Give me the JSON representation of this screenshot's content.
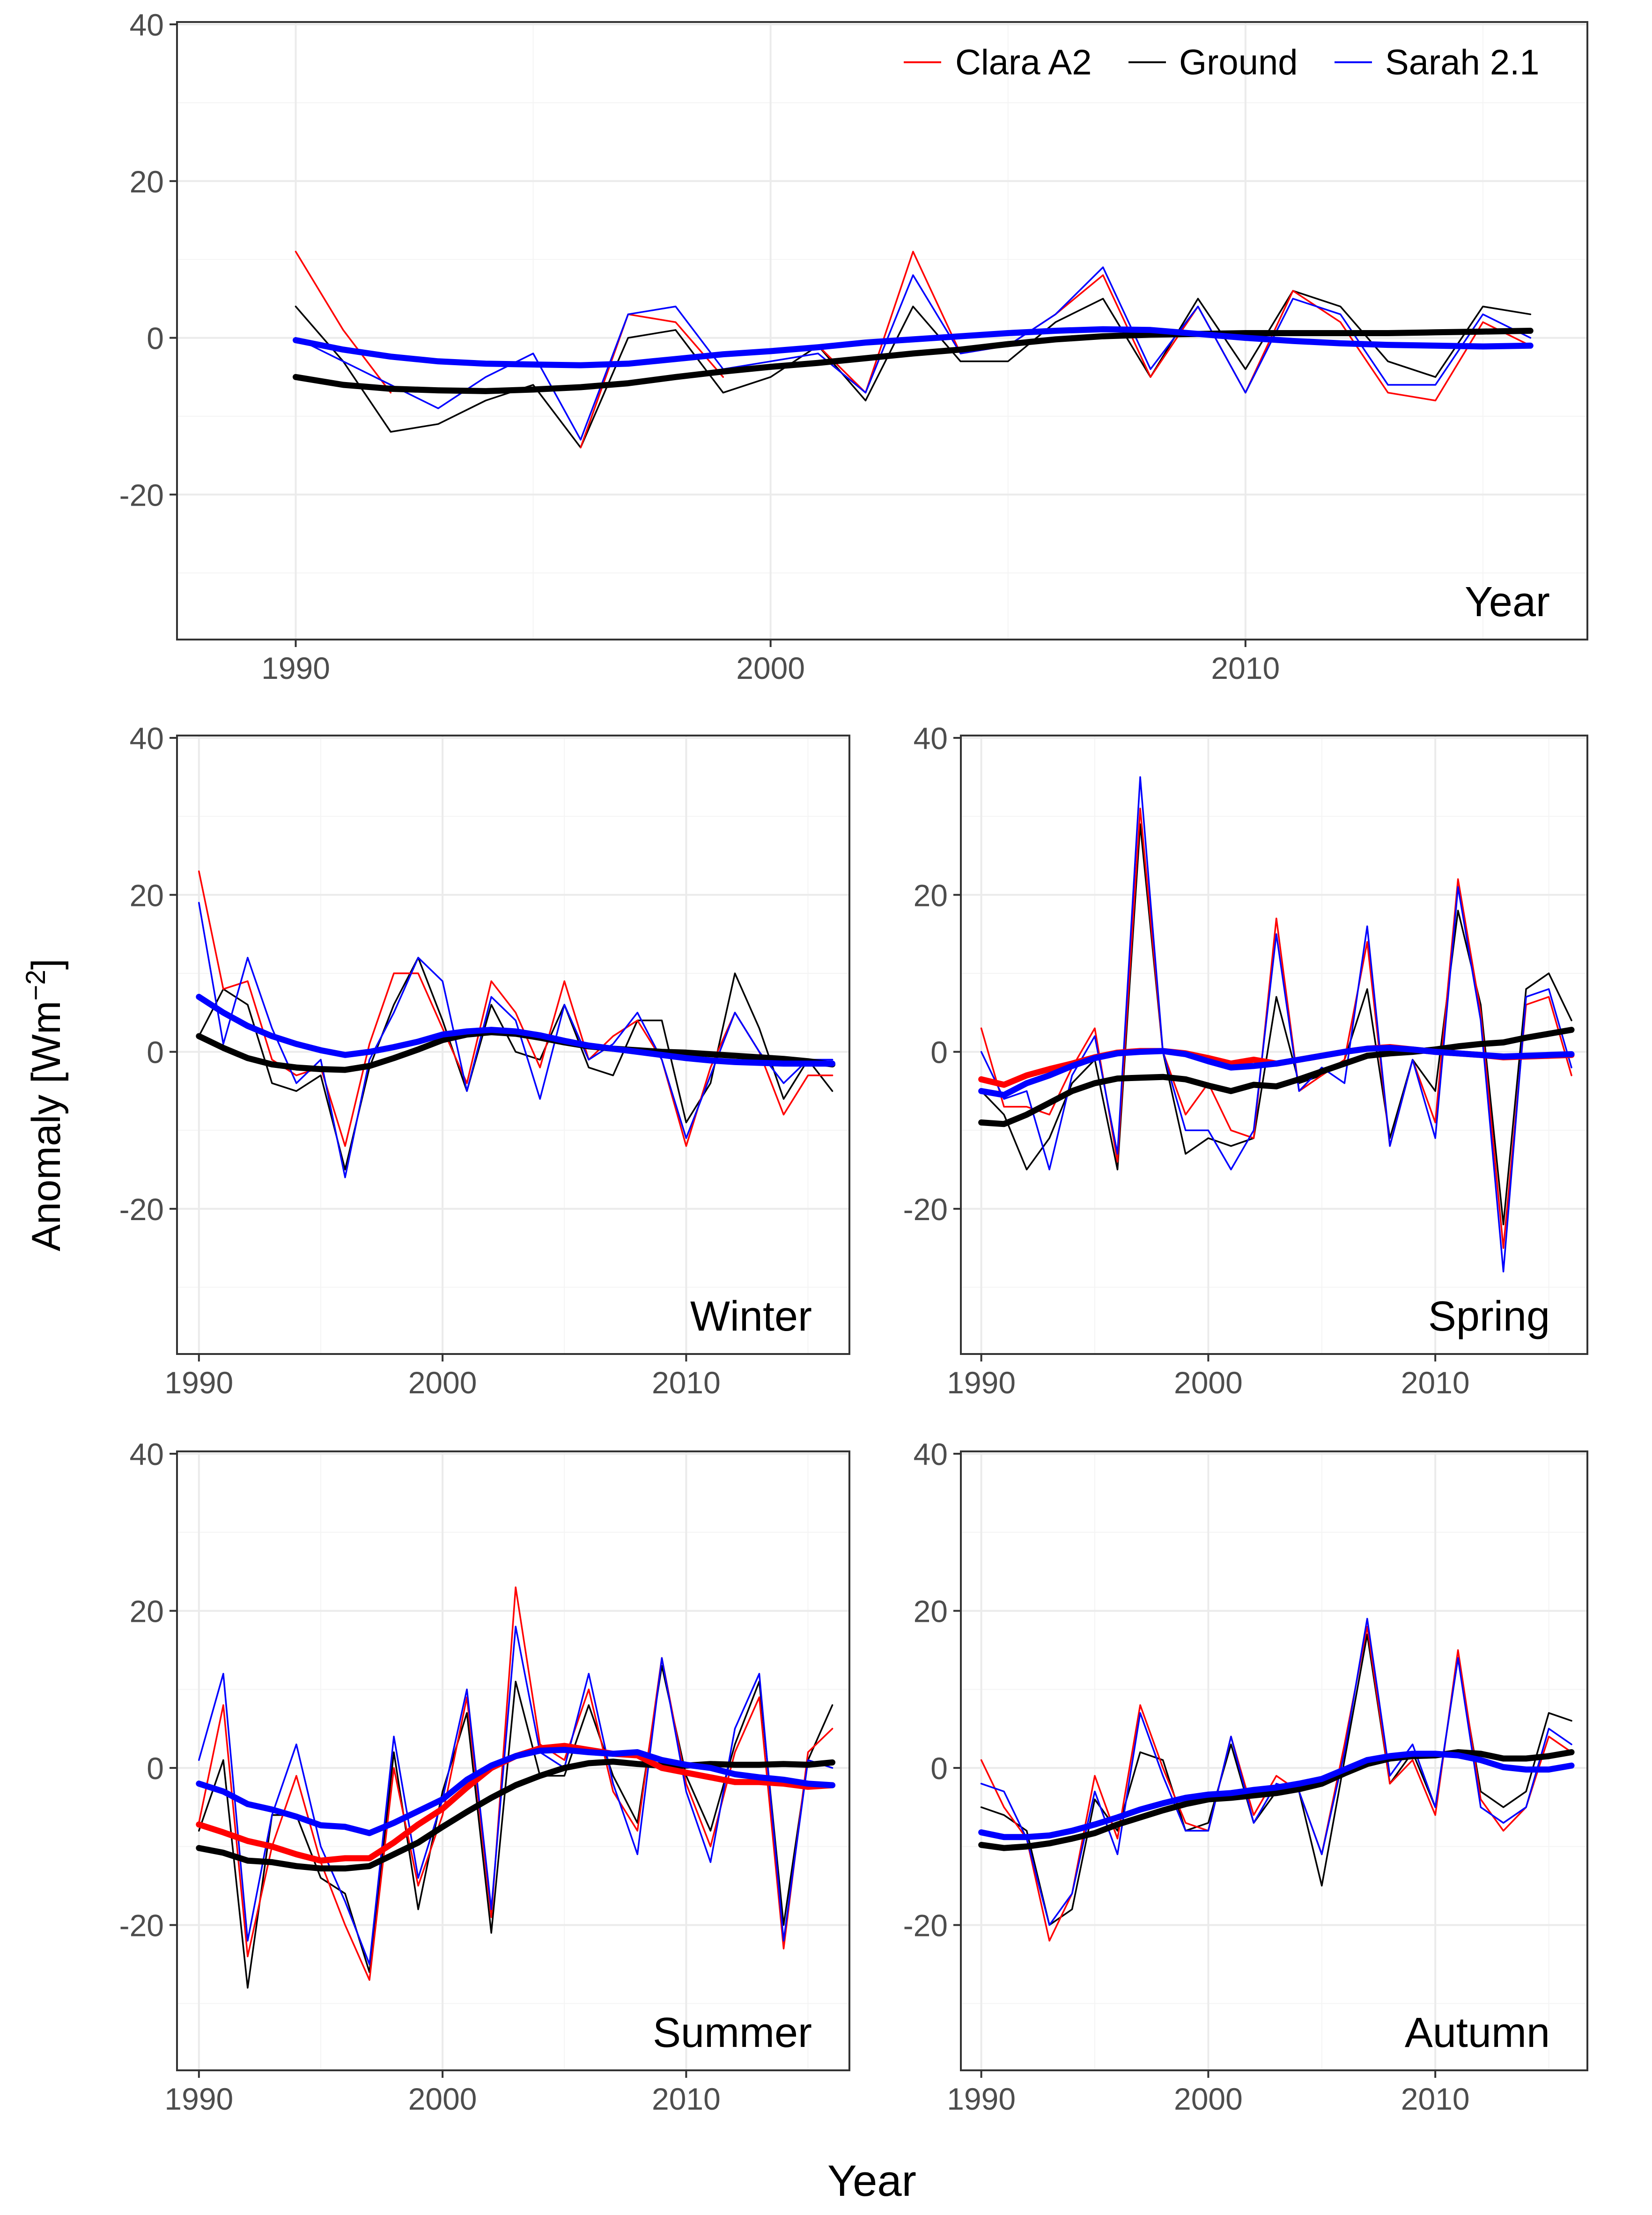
{
  "figure": {
    "ylabel_main": "Anomaly [Wm",
    "ylabel_sup": "−2",
    "ylabel_close": "]",
    "xlabel": "Year",
    "legend": [
      {
        "label": "Clara A2",
        "color": "#ff0000"
      },
      {
        "label": "Ground",
        "color": "#000000"
      },
      {
        "label": "Sarah 2.1",
        "color": "#0000ff"
      }
    ]
  },
  "colors": {
    "clara": "#ff0000",
    "ground": "#000000",
    "sarah": "#0000ff",
    "grid_major": "#ebebeb",
    "grid_minor": "#f4f4f4",
    "axis_text": "#4d4d4d",
    "frame": "#333333"
  },
  "chart_data": [
    {
      "type": "line",
      "title": "Year",
      "x": [
        1990,
        1991,
        1992,
        1993,
        1994,
        1995,
        1996,
        1997,
        1998,
        1999,
        2000,
        2001,
        2002,
        2003,
        2004,
        2005,
        2006,
        2007,
        2008,
        2009,
        2010,
        2011,
        2012,
        2013,
        2014,
        2015,
        2016
      ],
      "xlim": [
        1987.5,
        2017.2
      ],
      "ylim": [
        -38.5,
        40.3
      ],
      "xticks": [
        1990,
        2000,
        2010
      ],
      "yticks": [
        -20,
        0,
        20,
        40
      ],
      "series": [
        {
          "name": "Ground",
          "values": [
            4,
            -3,
            -12,
            -11,
            -8,
            -6,
            -14,
            0,
            1,
            -7,
            -5,
            -1,
            -8,
            4,
            -3,
            -3,
            2,
            5,
            -5,
            5,
            -4,
            6,
            4,
            -3,
            -5,
            4,
            3
          ]
        },
        {
          "name": "Clara A2",
          "values": [
            11,
            1,
            -7,
            null,
            null,
            null,
            -14,
            3,
            2,
            -5,
            null,
            -1,
            -7,
            11,
            -2,
            -1,
            3,
            8,
            -5,
            4,
            -7,
            6,
            2,
            -7,
            -8,
            2,
            -1
          ]
        },
        {
          "name": "Sarah 2.1",
          "values": [
            0,
            -3,
            -6,
            -9,
            -5,
            -2,
            -13,
            3,
            4,
            -4,
            -3,
            -2,
            -7,
            8,
            -2,
            -1,
            3,
            9,
            -4,
            4,
            -7,
            5,
            3,
            -6,
            -6,
            3,
            0
          ]
        }
      ],
      "smooth": [
        {
          "name": "Ground",
          "values": [
            -5,
            -6,
            -6.5,
            -6.7,
            -6.8,
            -6.6,
            -6.3,
            -5.8,
            -5,
            -4.3,
            -3.7,
            -3.2,
            -2.6,
            -2,
            -1.5,
            -0.8,
            -0.2,
            0.2,
            0.4,
            0.5,
            0.6,
            0.6,
            0.6,
            0.6,
            0.7,
            0.8,
            0.9
          ]
        },
        {
          "name": "Sarah 2.1",
          "values": [
            -0.3,
            -1.5,
            -2.4,
            -3,
            -3.3,
            -3.4,
            -3.5,
            -3.3,
            -2.7,
            -2.1,
            -1.7,
            -1.2,
            -0.6,
            -0.2,
            0.2,
            0.6,
            0.9,
            1.1,
            1,
            0.5,
            0,
            -0.4,
            -0.7,
            -0.9,
            -1,
            -1.1,
            -1
          ]
        }
      ]
    },
    {
      "type": "line",
      "title": "Winter",
      "x": [
        1990,
        1991,
        1992,
        1993,
        1994,
        1995,
        1996,
        1997,
        1998,
        1999,
        2000,
        2001,
        2002,
        2003,
        2004,
        2005,
        2006,
        2007,
        2008,
        2009,
        2010,
        2011,
        2012,
        2013,
        2014,
        2015,
        2016
      ],
      "xlim": [
        1989.1,
        2016.7
      ],
      "ylim": [
        -38.5,
        40.3
      ],
      "xticks": [
        1990,
        2000,
        2010
      ],
      "yticks": [
        -20,
        0,
        20,
        40
      ],
      "series": [
        {
          "name": "Ground",
          "values": [
            2,
            8,
            6,
            -4,
            -5,
            -3,
            -15,
            -2,
            6,
            12,
            4,
            -5,
            6,
            0,
            -1,
            6,
            -2,
            -3,
            4,
            4,
            -9,
            -4,
            10,
            3,
            -6,
            -1,
            -5
          ]
        },
        {
          "name": "Clara A2",
          "values": [
            23,
            8,
            9,
            -1,
            -3,
            -2,
            -12,
            1,
            10,
            10,
            3,
            -4,
            9,
            5,
            -2,
            9,
            -1,
            2,
            4,
            -1,
            -12,
            -2,
            5,
            0,
            -8,
            -3,
            -3
          ]
        },
        {
          "name": "Sarah 2.1",
          "values": [
            19,
            1,
            12,
            3,
            -4,
            -1,
            -16,
            -1,
            5,
            12,
            9,
            -5,
            7,
            4,
            -6,
            6,
            -1,
            1,
            5,
            -1,
            -11,
            -3,
            5,
            0,
            -4,
            -1,
            -1
          ]
        }
      ],
      "smooth": [
        {
          "name": "Ground",
          "values": [
            2,
            0.5,
            -0.8,
            -1.6,
            -2,
            -2.2,
            -2.3,
            -1.8,
            -0.8,
            0.3,
            1.5,
            2.2,
            2.5,
            2.3,
            1.8,
            1.2,
            0.7,
            0.4,
            0.2,
            0,
            -0.1,
            -0.3,
            -0.5,
            -0.7,
            -0.9,
            -1.2,
            -1.6
          ]
        },
        {
          "name": "Sarah 2.1",
          "values": [
            7,
            5,
            3.3,
            2,
            1,
            0.2,
            -0.4,
            0,
            0.6,
            1.3,
            2.2,
            2.6,
            2.8,
            2.6,
            2.1,
            1.4,
            0.8,
            0.4,
            0,
            -0.4,
            -0.8,
            -1.1,
            -1.3,
            -1.4,
            -1.5,
            -1.5,
            -1.5
          ]
        }
      ]
    },
    {
      "type": "line",
      "title": "Spring",
      "x": [
        1990,
        1991,
        1992,
        1993,
        1994,
        1995,
        1996,
        1997,
        1998,
        1999,
        2000,
        2001,
        2002,
        2003,
        2004,
        2005,
        2006,
        2007,
        2008,
        2009,
        2010,
        2011,
        2012,
        2013,
        2014,
        2015,
        2016
      ],
      "xlim": [
        1989.1,
        2016.7
      ],
      "ylim": [
        -38.5,
        40.3
      ],
      "xticks": [
        1990,
        2000,
        2010
      ],
      "yticks": [
        -20,
        0,
        20,
        40
      ],
      "series": [
        {
          "name": "Ground",
          "values": [
            -5,
            -8,
            -15,
            -11,
            -4,
            -1,
            -15,
            29,
            0,
            -13,
            -11,
            -12,
            -11,
            7,
            -4,
            -3,
            -1,
            8,
            -11,
            -1,
            -5,
            18,
            6,
            -22,
            8,
            10,
            4
          ]
        },
        {
          "name": "Clara A2",
          "values": [
            3,
            -7,
            -7,
            -8,
            -2,
            3,
            -14,
            31,
            0,
            -8,
            -4,
            -10,
            -11,
            17,
            -5,
            -3,
            -1,
            14,
            -12,
            -1,
            -9,
            22,
            5,
            -25,
            6,
            7,
            -3
          ]
        },
        {
          "name": "Sarah 2.1",
          "values": [
            0,
            -6,
            -5,
            -15,
            -3,
            2,
            -13,
            35,
            0,
            -10,
            -10,
            -15,
            -10,
            15,
            -5,
            -2,
            -4,
            16,
            -12,
            -1,
            -11,
            21,
            4,
            -28,
            7,
            8,
            -2
          ]
        }
      ],
      "smooth": [
        {
          "name": "Ground",
          "values": [
            -9,
            -9.2,
            -8,
            -6.5,
            -5,
            -4,
            -3.4,
            -3.3,
            -3.2,
            -3.5,
            -4.3,
            -5,
            -4.2,
            -4.4,
            -3.5,
            -2.5,
            -1.5,
            -0.5,
            -0.2,
            0,
            0.3,
            0.7,
            1,
            1.2,
            1.8,
            2.3,
            2.8
          ]
        },
        {
          "name": "Clara A2",
          "values": [
            -3.5,
            -4.2,
            -3,
            -2.2,
            -1.5,
            -0.7,
            -0.1,
            0.1,
            0.1,
            -0.2,
            -0.8,
            -1.5,
            -1,
            -1.5,
            -1,
            -0.5,
            0,
            0.4,
            0.6,
            0.3,
            0,
            -0.2,
            -0.4,
            -0.7,
            -0.6,
            -0.5,
            -0.4
          ]
        },
        {
          "name": "Sarah 2.1",
          "values": [
            -5,
            -5.5,
            -4,
            -3,
            -1.8,
            -0.8,
            -0.2,
            0,
            0.1,
            -0.3,
            -1.2,
            -2,
            -1.8,
            -1.5,
            -1,
            -0.5,
            0,
            0.4,
            0.5,
            0.3,
            0,
            -0.2,
            -0.4,
            -0.6,
            -0.5,
            -0.4,
            -0.3
          ]
        }
      ]
    },
    {
      "type": "line",
      "title": "Summer",
      "x": [
        1990,
        1991,
        1992,
        1993,
        1994,
        1995,
        1996,
        1997,
        1998,
        1999,
        2000,
        2001,
        2002,
        2003,
        2004,
        2005,
        2006,
        2007,
        2008,
        2009,
        2010,
        2011,
        2012,
        2013,
        2014,
        2015,
        2016
      ],
      "xlim": [
        1989.1,
        2016.7
      ],
      "ylim": [
        -38.5,
        40.3
      ],
      "xticks": [
        1990,
        2000,
        2010
      ],
      "yticks": [
        -20,
        0,
        20,
        40
      ],
      "series": [
        {
          "name": "Ground",
          "values": [
            -8,
            1,
            -28,
            -6,
            -6,
            -14,
            -16,
            -26,
            2,
            -18,
            -3,
            7,
            -21,
            11,
            -1,
            -1,
            8,
            -1,
            -7,
            13,
            -1,
            -8,
            3,
            11,
            -20,
            1,
            8
          ]
        },
        {
          "name": "Clara A2",
          "values": [
            -7,
            8,
            -24,
            -10,
            -1,
            -12,
            -20,
            -27,
            0,
            -15,
            -6,
            9,
            -19,
            23,
            3,
            1,
            10,
            -3,
            -8,
            14,
            -2,
            -10,
            2,
            9,
            -23,
            2,
            5
          ]
        },
        {
          "name": "Sarah 2.1",
          "values": [
            1,
            12,
            -22,
            -6,
            3,
            -10,
            -17,
            -25,
            4,
            -14,
            -4,
            10,
            -18,
            18,
            2,
            0,
            12,
            -2,
            -11,
            14,
            -3,
            -12,
            5,
            12,
            -22,
            1,
            0
          ]
        }
      ],
      "smooth": [
        {
          "name": "Ground",
          "values": [
            -10.2,
            -10.8,
            -11.8,
            -12,
            -12.5,
            -12.8,
            -12.8,
            -12.5,
            -11,
            -9.5,
            -7.5,
            -5.6,
            -3.8,
            -2.2,
            -1,
            0,
            0.6,
            0.8,
            0.5,
            0.3,
            0.3,
            0.5,
            0.4,
            0.4,
            0.5,
            0.4,
            0.7
          ]
        },
        {
          "name": "Clara A2",
          "values": [
            -7.2,
            -8.2,
            -9.3,
            -10,
            -11,
            -11.8,
            -11.5,
            -11.5,
            -9.5,
            -7.2,
            -5.2,
            -2.5,
            0,
            1.5,
            2.5,
            2.8,
            2.3,
            1.8,
            1.6,
            0,
            -0.6,
            -1.2,
            -1.8,
            -1.8,
            -2,
            -2.4,
            -2.2
          ]
        },
        {
          "name": "Sarah 2.1",
          "values": [
            -2,
            -3,
            -4.6,
            -5.3,
            -6.2,
            -7.3,
            -7.5,
            -8.3,
            -7,
            -5.5,
            -4,
            -1.5,
            0.3,
            1.5,
            2.2,
            2.3,
            2,
            1.8,
            2,
            1,
            0.4,
            0,
            -0.8,
            -1.2,
            -1.5,
            -2,
            -2.2
          ]
        }
      ]
    },
    {
      "type": "line",
      "title": "Autumn",
      "x": [
        1990,
        1991,
        1992,
        1993,
        1994,
        1995,
        1996,
        1997,
        1998,
        1999,
        2000,
        2001,
        2002,
        2003,
        2004,
        2005,
        2006,
        2007,
        2008,
        2009,
        2010,
        2011,
        2012,
        2013,
        2014,
        2015,
        2016
      ],
      "xlim": [
        1989.1,
        2016.7
      ],
      "ylim": [
        -38.5,
        40.3
      ],
      "xticks": [
        1990,
        2000,
        2010
      ],
      "yticks": [
        -20,
        0,
        20,
        40
      ],
      "series": [
        {
          "name": "Ground",
          "values": [
            -5,
            -6,
            -8,
            -20,
            -18,
            -4,
            -8,
            2,
            1,
            -8,
            -7,
            3,
            -7,
            -3,
            -3,
            -15,
            1,
            17,
            -2,
            2,
            -5,
            14,
            -3,
            -5,
            -3,
            7,
            6
          ]
        },
        {
          "name": "Clara A2",
          "values": [
            1,
            -5,
            -9,
            -22,
            -16,
            -1,
            -9,
            8,
            0,
            -7,
            -8,
            4,
            -6,
            -1,
            -3,
            -11,
            3,
            18,
            -2,
            1,
            -6,
            15,
            -4,
            -8,
            -5,
            4,
            2
          ]
        },
        {
          "name": "Sarah 2.1",
          "values": [
            -2,
            -3,
            -9,
            -20,
            -16,
            -3,
            -11,
            7,
            -1,
            -8,
            -8,
            4,
            -7,
            -2,
            -3,
            -11,
            2,
            19,
            -1,
            3,
            -5,
            14,
            -5,
            -7,
            -5,
            5,
            3
          ]
        }
      ],
      "smooth": [
        {
          "name": "Ground",
          "values": [
            -9.8,
            -10.2,
            -10,
            -9.6,
            -9,
            -8.3,
            -7.2,
            -6.3,
            -5.4,
            -4.6,
            -4,
            -3.8,
            -3.5,
            -3.2,
            -2.7,
            -2,
            -0.7,
            0.5,
            1.2,
            1.5,
            1.6,
            2,
            1.8,
            1.2,
            1.2,
            1.5,
            2
          ]
        },
        {
          "name": "Sarah 2.1",
          "values": [
            -8.2,
            -8.8,
            -8.8,
            -8.6,
            -8,
            -7.2,
            -6.3,
            -5.3,
            -4.5,
            -3.8,
            -3.4,
            -3.2,
            -2.8,
            -2.5,
            -2,
            -1.4,
            -0.2,
            1,
            1.5,
            1.8,
            1.8,
            1.6,
            1,
            0.1,
            -0.2,
            -0.2,
            0.3
          ]
        }
      ]
    }
  ]
}
